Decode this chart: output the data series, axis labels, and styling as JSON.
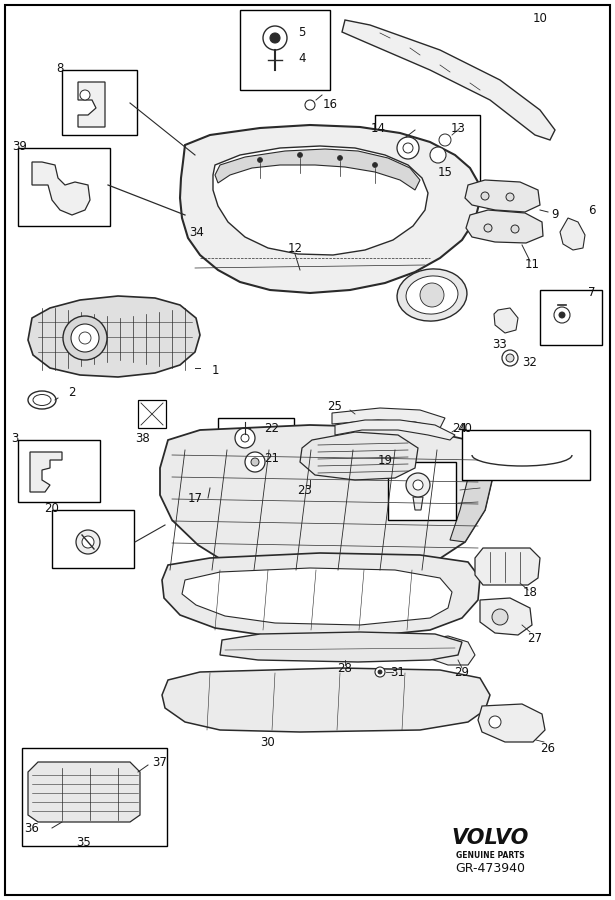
{
  "bg_color": "#ffffff",
  "border_color": "#000000",
  "line_color": "#2a2a2a",
  "diagram_ref": "GR-473940",
  "brand": "VOLVO",
  "brand_sub": "GENUINE PARTS",
  "label_fs": 8.5,
  "small_fs": 7.5,
  "figw": 6.15,
  "figh": 9.0,
  "dpi": 100
}
